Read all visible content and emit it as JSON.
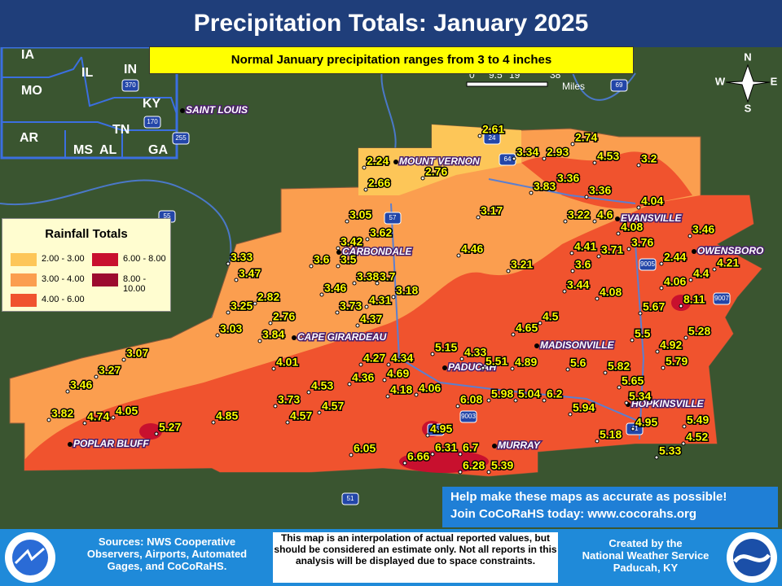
{
  "header": {
    "title": "Precipitation Totals: January 2025",
    "subtitle": "Normal January precipitation ranges from 3 to 4 inches"
  },
  "legend": {
    "title": "Rainfall Totals",
    "items": [
      "2.00 - 3.00",
      "6.00 - 8.00",
      "3.00 - 4.00",
      "8.00 - 10.00",
      "4.00 - 6.00"
    ]
  },
  "scale": {
    "ticks": [
      "0",
      "9.5",
      "19",
      "38"
    ],
    "unit": "Miles"
  },
  "compass": [
    "N",
    "E",
    "S",
    "W"
  ],
  "inset_states": [
    "IA",
    "IL",
    "IN",
    "MO",
    "KY",
    "AR",
    "TN",
    "MS",
    "AL",
    "GA"
  ],
  "cities": [
    "SAINT LOUIS",
    "MOUNT VERNON",
    "EVANSVILLE",
    "OWENSBORO",
    "CARBONDALE",
    "CAPE GIRARDEAU",
    "MADISONVILLE",
    "PADUCAH",
    "HOPKINSVILLE",
    "POPLAR BLUFF",
    "MURRAY"
  ],
  "highways": [
    "64",
    "57",
    "24",
    "69",
    "45",
    "41",
    "55",
    "9003",
    "9005",
    "9007",
    "51",
    "170",
    "255",
    "370"
  ],
  "stations": [
    "2.61",
    "2.74",
    "3.34",
    "2.93",
    "4.53",
    "3.2",
    "2.24",
    "2.76",
    "3.36",
    "3.83",
    "2.66",
    "3.36",
    "4.04",
    "3.05",
    "3.17",
    "3.22",
    "4.6",
    "4.08",
    "3.46",
    "3.62",
    "3.42",
    "4.41",
    "3.71",
    "3.76",
    "4.46",
    "2.44",
    "4.21",
    "3.33",
    "3.6",
    "3.5",
    "3.21",
    "3.6",
    "4.4",
    "3.47",
    "3.38",
    "3.7",
    "4.06",
    "3.46",
    "3.18",
    "3.44",
    "4.08",
    "8.11",
    "2.82",
    "4.31",
    "3.73",
    "5.67",
    "3.25",
    "2.76",
    "4.37",
    "4.5",
    "3.03",
    "4.65",
    "3.84",
    "5.28",
    "5.5",
    "4.92",
    "3.07",
    "5.15",
    "4.33",
    "4.27",
    "4.34",
    "4.01",
    "5.79",
    "5.51",
    "4.89",
    "5.6",
    "5.82",
    "3.27",
    "4.69",
    "5.65",
    "4.36",
    "3.46",
    "4.53",
    "4.18",
    "4.06",
    "5.98",
    "5.04",
    "6.2",
    "5.34",
    "6.08",
    "3.73",
    "4.57",
    "5.94",
    "3.82",
    "4.74",
    "4.05",
    "4.57",
    "4.85",
    "5.27",
    "4.95",
    "4.95",
    "5.49",
    "5.18",
    "4.52",
    "6.31",
    "6.7",
    "6.05",
    "5.33",
    "6.66",
    "6.28",
    "5.39"
  ],
  "callout": {
    "line1": "Help make these maps as accurate as possible!",
    "line2": "Join CoCoRaHS today: www.cocorahs.org"
  },
  "footer": {
    "sources": "Sources: NWS Cooperative Observers, Airports, Automated Gages, and CoCoRaHS.",
    "disclaimer": "This map is an interpolation of actual reported values, but should be considered an estimate only. Not all reports in this analysis will be displayed due to space constraints.",
    "credit": [
      "Created by the",
      "National Weather Service",
      "Paducah, KY"
    ]
  }
}
